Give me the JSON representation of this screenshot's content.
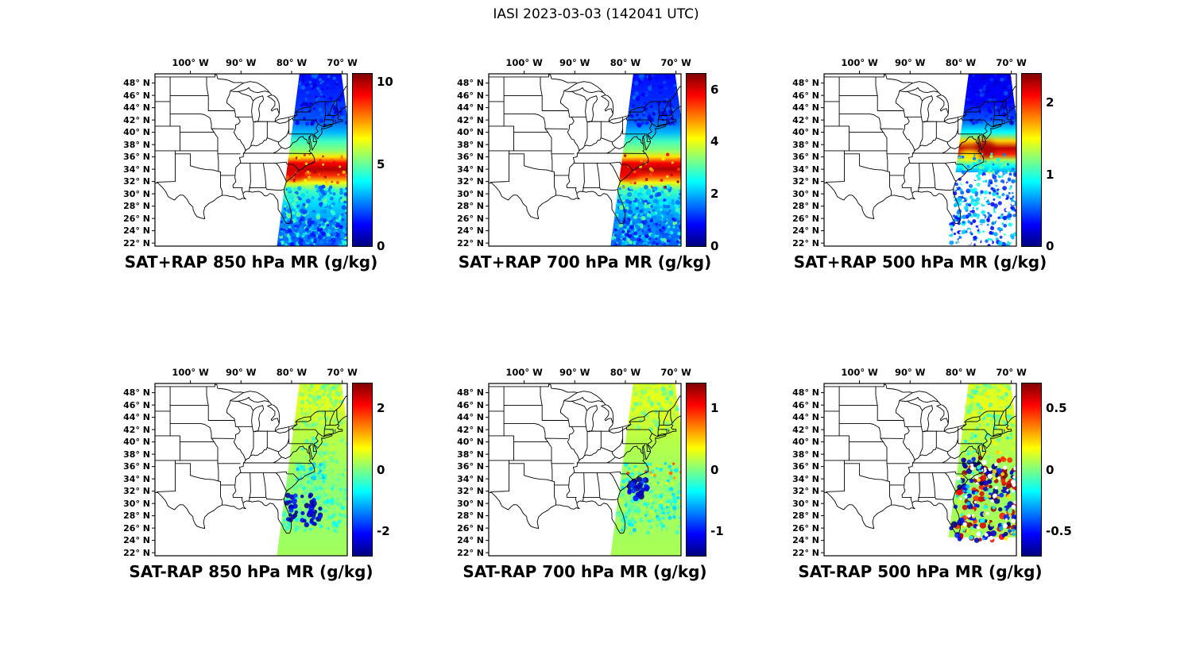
{
  "title": "IASI 2023-03-03 (142041 UTC)",
  "axes": {
    "lon_tick_labels": [
      "100° W",
      "90° W",
      "80° W",
      "70° W"
    ],
    "lon_tick_values": [
      -100,
      -90,
      -80,
      -70
    ],
    "lat_tick_labels": [
      "48° N",
      "46° N",
      "44° N",
      "42° N",
      "40° N",
      "38° N",
      "36° N",
      "34° N",
      "32° N",
      "30° N",
      "28° N",
      "26° N",
      "24° N",
      "22° N"
    ],
    "lat_tick_values": [
      48,
      46,
      44,
      42,
      40,
      38,
      36,
      34,
      32,
      30,
      28,
      26,
      24,
      22
    ],
    "extent": {
      "lon_min": -107,
      "lon_max": -69,
      "lat_min": 21.5,
      "lat_max": 49.5
    }
  },
  "colormap": {
    "name": "jet",
    "stops": [
      [
        0,
        "#00007F"
      ],
      [
        0.125,
        "#0000FF"
      ],
      [
        0.375,
        "#00FFFF"
      ],
      [
        0.625,
        "#FFFF00"
      ],
      [
        0.875,
        "#FF0000"
      ],
      [
        1,
        "#7F0000"
      ]
    ]
  },
  "chart_data": {
    "type": "heatmap",
    "description": "Six lon-lat map panels over the central/eastern United States showing an IASI satellite sounding swath along the US East Coast. Top row: satellite retrieval combined with RAP model (SAT+RAP) water-vapor mixing ratio at 850, 700 and 500 hPa. Bottom row: satellite-minus-model difference (SAT-RAP) at the same levels. Jet colormap; state outlines in black.",
    "projection": "plate-carree lon/lat",
    "gridlines": false,
    "swath_polygon_lonlat": [
      [
        -78.3,
        50.5
      ],
      [
        -70.3,
        50.5
      ],
      [
        -65.5,
        21
      ],
      [
        -83,
        21
      ]
    ],
    "panels": [
      {
        "name": "sat-plus-rap-850",
        "title": "SAT+RAP 850 hPa MR (g/kg)",
        "operation": "SAT+RAP",
        "level_hPa": 850,
        "units": "g/kg",
        "colorbar": {
          "min": 0,
          "max": 10.5,
          "tick_values": [
            0,
            5,
            10
          ],
          "tick_labels": [
            "0",
            "5",
            "10"
          ]
        },
        "solid_min_lat": 21,
        "lat_profile": [
          [
            51,
            1.2
          ],
          [
            45,
            1.8
          ],
          [
            42,
            2.2
          ],
          [
            40,
            3.2
          ],
          [
            38.5,
            4.6
          ],
          [
            37,
            5.4
          ],
          [
            36,
            6.8
          ],
          [
            35,
            9.2
          ],
          [
            34,
            10.0
          ],
          [
            33,
            8.8
          ],
          [
            31.8,
            6.4
          ],
          [
            30.5,
            4.6
          ],
          [
            28.5,
            3.6
          ],
          [
            26,
            3.0
          ],
          [
            23,
            2.4
          ],
          [
            21,
            2.2
          ]
        ],
        "blobs": [
          [
            -79.6,
            33.4,
            2.6,
            1.2,
            9.5
          ]
        ],
        "mottle": [
          {
            "lat": [
              21.5,
              31.2
            ],
            "count": 300,
            "r": [
              1.4,
              3.2
            ],
            "v": [
              1.8,
              5.2
            ]
          },
          {
            "lat": [
              21.5,
              26
            ],
            "count": 120,
            "r": [
              1.4,
              3.0
            ],
            "v": [
              1.2,
              3.0
            ]
          },
          {
            "lat": [
              41,
              50
            ],
            "count": 100,
            "r": [
              1.5,
              3.0
            ],
            "v": [
              0.8,
              2.6
            ]
          },
          {
            "lat": [
              31,
              36.5
            ],
            "count": 40,
            "r": [
              1.2,
              2.2
            ],
            "v": [
              6.5,
              10.3
            ]
          }
        ]
      },
      {
        "name": "sat-plus-rap-700",
        "title": "SAT+RAP 700 hPa MR (g/kg)",
        "operation": "SAT+RAP",
        "level_hPa": 700,
        "units": "g/kg",
        "colorbar": {
          "min": 0,
          "max": 6.6,
          "tick_values": [
            0,
            2,
            4,
            6
          ],
          "tick_labels": [
            "0",
            "2",
            "4",
            "6"
          ]
        },
        "solid_min_lat": 21,
        "lat_profile": [
          [
            51,
            0.8
          ],
          [
            45,
            1.1
          ],
          [
            42,
            1.4
          ],
          [
            40,
            2.0
          ],
          [
            38.5,
            2.9
          ],
          [
            37,
            3.4
          ],
          [
            36,
            4.3
          ],
          [
            35,
            5.8
          ],
          [
            34,
            6.3
          ],
          [
            33,
            5.5
          ],
          [
            31.8,
            4.0
          ],
          [
            30.5,
            2.9
          ],
          [
            28.5,
            2.2
          ],
          [
            26,
            1.8
          ],
          [
            23,
            1.5
          ],
          [
            21,
            1.4
          ]
        ],
        "blobs": [
          [
            -79.6,
            33.4,
            2.6,
            1.2,
            5.9
          ]
        ],
        "mottle": [
          {
            "lat": [
              21.5,
              31.2
            ],
            "count": 300,
            "r": [
              1.4,
              3.2
            ],
            "v": [
              1.1,
              3.3
            ]
          },
          {
            "lat": [
              21.5,
              26
            ],
            "count": 120,
            "r": [
              1.4,
              3.0
            ],
            "v": [
              0.7,
              1.9
            ]
          },
          {
            "lat": [
              41,
              50
            ],
            "count": 100,
            "r": [
              1.5,
              3.0
            ],
            "v": [
              0.5,
              1.6
            ]
          },
          {
            "lat": [
              31,
              36.5
            ],
            "count": 40,
            "r": [
              1.2,
              2.2
            ],
            "v": [
              4.0,
              6.4
            ]
          }
        ]
      },
      {
        "name": "sat-plus-rap-500",
        "title": "SAT+RAP 500 hPa MR (g/kg)",
        "operation": "SAT+RAP",
        "level_hPa": 500,
        "units": "g/kg",
        "colorbar": {
          "min": 0,
          "max": 2.4,
          "tick_values": [
            0,
            1,
            2
          ],
          "tick_labels": [
            "0",
            "1",
            "2"
          ]
        },
        "solid_min_lat": 33.5,
        "lat_profile": [
          [
            51,
            0.25
          ],
          [
            45,
            0.3
          ],
          [
            42,
            0.5
          ],
          [
            40,
            0.9
          ],
          [
            38.6,
            1.6
          ],
          [
            37.4,
            2.25
          ],
          [
            36.4,
            2.0
          ],
          [
            35.5,
            1.3
          ],
          [
            34.5,
            0.9
          ],
          [
            33.5,
            0.7
          ]
        ],
        "blobs": [
          [
            -75.2,
            37.3,
            2.0,
            1.4,
            2.3
          ],
          [
            -78.2,
            36.2,
            2.2,
            1.0,
            1.5
          ]
        ],
        "mottle": [
          {
            "lat": [
              21.5,
              33.5
            ],
            "count": 300,
            "r": [
              1.4,
              3.0
            ],
            "v": [
              0.25,
              1.05
            ]
          },
          {
            "lat": [
              21.5,
              33.5
            ],
            "count": 70,
            "r": [
              1.5,
              3.0
            ],
            "color": "#FFFFFF"
          },
          {
            "lat": [
              41,
              50
            ],
            "count": 90,
            "r": [
              1.5,
              3.0
            ],
            "v": [
              0.15,
              0.5
            ]
          },
          {
            "lat": [
              33.5,
              36.5
            ],
            "count": 50,
            "r": [
              1.2,
              2.4
            ],
            "v": [
              0.5,
              1.3
            ]
          }
        ]
      },
      {
        "name": "sat-minus-rap-850",
        "title": "SAT-RAP 850 hPa MR (g/kg)",
        "operation": "SAT-RAP",
        "level_hPa": 850,
        "units": "g/kg",
        "colorbar": {
          "min": -2.8,
          "max": 2.8,
          "tick_values": [
            -2,
            0,
            2
          ],
          "tick_labels": [
            "-2",
            "0",
            "2"
          ]
        },
        "solid_min_lat": 21,
        "lat_profile": [
          [
            51,
            0.5
          ],
          [
            46,
            0.55
          ],
          [
            43,
            0.35
          ],
          [
            40,
            0.3
          ],
          [
            36,
            0.2
          ],
          [
            33,
            0.05
          ],
          [
            29,
            0.1
          ],
          [
            25,
            0.15
          ],
          [
            21,
            0.2
          ]
        ],
        "blobs": [],
        "mottle": [
          {
            "lat": [
              42,
              50.2
            ],
            "count": 130,
            "r": [
              1.8,
              3.2
            ],
            "v": [
              -0.25,
              0.55
            ]
          },
          {
            "lat": [
              33,
              41
            ],
            "lon": [
              -78,
              -69
            ],
            "count": 90,
            "r": [
              1.5,
              2.8
            ],
            "v": [
              -0.5,
              0.4
            ]
          },
          {
            "lat": [
              25.5,
              33
            ],
            "count": 220,
            "r": [
              1.5,
              3.2
            ],
            "v": [
              -0.7,
              0.35
            ]
          },
          {
            "lat": [
              26.5,
              31.5
            ],
            "lon": [
              -81,
              -74
            ],
            "count": 45,
            "r": [
              2.2,
              3.8
            ],
            "v": [
              -2.8,
              -1.8
            ]
          },
          {
            "lat": [
              33.5,
              36.5
            ],
            "lon": [
              -79,
              -73
            ],
            "count": 50,
            "r": [
              1.5,
              2.5
            ],
            "v": [
              -1.1,
              -0.2
            ]
          }
        ]
      },
      {
        "name": "sat-minus-rap-700",
        "title": "SAT-RAP 700 hPa MR (g/kg)",
        "operation": "SAT-RAP",
        "level_hPa": 700,
        "units": "g/kg",
        "colorbar": {
          "min": -1.4,
          "max": 1.4,
          "tick_values": [
            -1,
            0,
            1
          ],
          "tick_labels": [
            "-1",
            "0",
            "1"
          ]
        },
        "solid_min_lat": 21,
        "lat_profile": [
          [
            51,
            0.25
          ],
          [
            46,
            0.28
          ],
          [
            43,
            0.2
          ],
          [
            40,
            0.15
          ],
          [
            36,
            0.1
          ],
          [
            33,
            0.05
          ],
          [
            29,
            0.08
          ],
          [
            25,
            0.1
          ],
          [
            21,
            0.12
          ]
        ],
        "blobs": [],
        "mottle": [
          {
            "lat": [
              42,
              50.2
            ],
            "count": 130,
            "r": [
              1.8,
              3.2
            ],
            "v": [
              -0.15,
              0.3
            ]
          },
          {
            "lat": [
              27,
              36.5
            ],
            "count": 200,
            "r": [
              1.5,
              3.0
            ],
            "v": [
              -0.45,
              0.25
            ]
          },
          {
            "lat": [
              30.5,
              34
            ],
            "lon": [
              -79.5,
              -75.5
            ],
            "count": 28,
            "r": [
              2.4,
              4.0
            ],
            "v": [
              -1.4,
              -0.9
            ]
          },
          {
            "lat": [
              25,
              30
            ],
            "count": 80,
            "r": [
              1.5,
              3.0
            ],
            "v": [
              -0.5,
              0.2
            ]
          },
          {
            "lat": [
              34,
              36.5
            ],
            "count": 10,
            "r": [
              1.5,
              2.5
            ],
            "v": [
              0.5,
              0.9
            ]
          }
        ]
      },
      {
        "name": "sat-minus-rap-500",
        "title": "SAT-RAP 500 hPa MR (g/kg)",
        "operation": "SAT-RAP",
        "level_hPa": 500,
        "units": "g/kg",
        "colorbar": {
          "min": -0.7,
          "max": 0.7,
          "tick_values": [
            -0.5,
            0,
            0.5
          ],
          "tick_labels": [
            "-0.5",
            "0",
            "0.5"
          ]
        },
        "solid_min_lat": 24.5,
        "lat_profile": [
          [
            51,
            0.12
          ],
          [
            46,
            0.14
          ],
          [
            43,
            0.1
          ],
          [
            40,
            0.08
          ],
          [
            36,
            0.05
          ],
          [
            33,
            0.03
          ],
          [
            29,
            0.05
          ],
          [
            25,
            0.06
          ],
          [
            21,
            0.06
          ]
        ],
        "blobs": [],
        "mottle": [
          {
            "lat": [
              42,
              50.2
            ],
            "count": 130,
            "r": [
              1.8,
              3.2
            ],
            "v": [
              -0.12,
              0.2
            ]
          },
          {
            "lat": [
              24,
              37.5
            ],
            "count": 90,
            "r": [
              2.2,
              4.2
            ],
            "v": [
              0.45,
              0.72
            ]
          },
          {
            "lat": [
              24,
              37.5
            ],
            "count": 90,
            "r": [
              2.2,
              4.2
            ],
            "v": [
              -0.72,
              -0.45
            ]
          },
          {
            "lat": [
              24,
              37.5
            ],
            "count": 80,
            "r": [
              1.5,
              3.0
            ],
            "v": [
              -0.3,
              0.3
            ]
          },
          {
            "lat": [
              24,
              37.5
            ],
            "count": 50,
            "r": [
              1.5,
              3.2
            ],
            "color": "#FFFFFF"
          },
          {
            "lat": [
              37.5,
              42
            ],
            "count": 40,
            "r": [
              1.5,
              2.8
            ],
            "v": [
              -0.2,
              0.25
            ]
          }
        ]
      }
    ]
  }
}
